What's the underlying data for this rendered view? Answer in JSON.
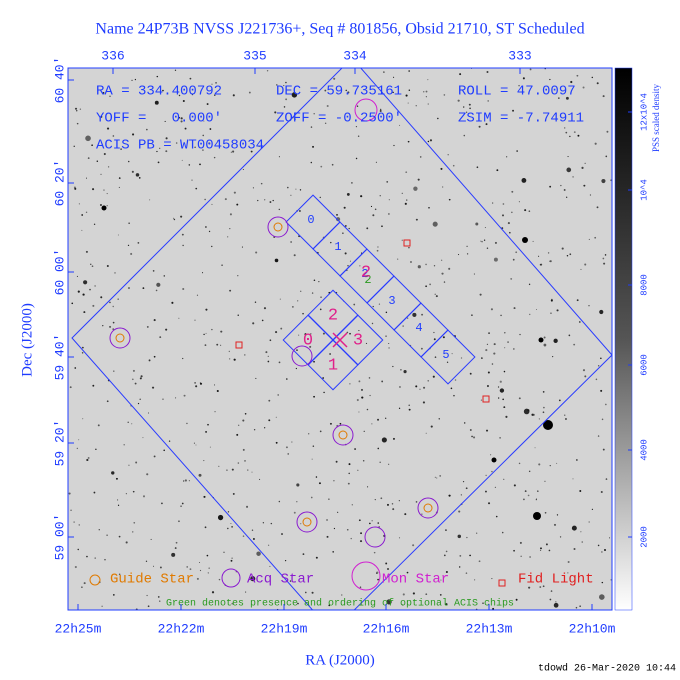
{
  "title": "Name 24P73B NVSS J221736+, Seq # 801856, Obsid 21710, ST Scheduled",
  "info": {
    "ra": "RA = 334.400792",
    "dec": "DEC = 59.735161",
    "roll": "ROLL = 47.0097",
    "yoff": "YOFF =   0.000'",
    "zoff": "ZOFF = -0.2500'",
    "zsim": "ZSIM = -7.74911",
    "acis_pb": "ACIS PB = WT00458034"
  },
  "top_ticks": [
    "336",
    "335",
    "334",
    "333"
  ],
  "left_ticks": [
    "60 40'",
    "60 20'",
    "60 00'",
    "59 40'",
    "59 20'",
    "59 00'"
  ],
  "bottom_ticks": [
    "22h25m",
    "22h22m",
    "22h19m",
    "22h16m",
    "22h13m",
    "22h10m"
  ],
  "x_label": "RA (J2000)",
  "y_label": "Dec (J2000)",
  "colorbar": {
    "label": "PSS scaled density",
    "ticks": [
      "12x10^4",
      "10^4",
      "8000",
      "6000",
      "4000",
      "2000"
    ]
  },
  "s_chips": [
    "0",
    "1",
    "2",
    "3",
    "4",
    "5"
  ],
  "i_chips": [
    "2",
    "0",
    "3",
    "1"
  ],
  "optional_chip": "2",
  "legend": [
    "Guide Star",
    "Acq Star",
    "Mon Star",
    "Fid Light"
  ],
  "note": "Green denotes presence and ordering of optional ACIS chips",
  "footer": "tdowd 26-Mar-2020 10:44"
}
